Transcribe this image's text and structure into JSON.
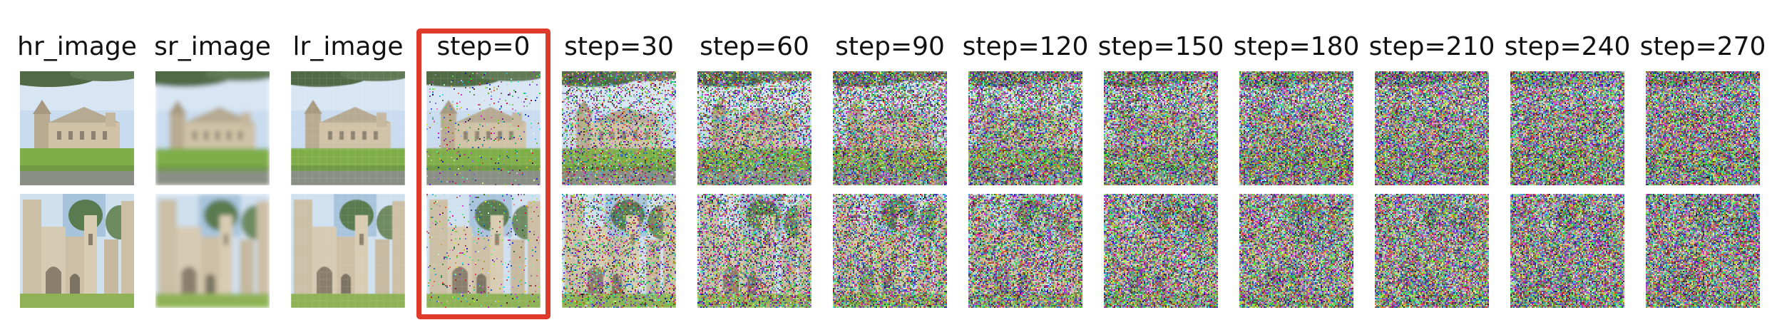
{
  "columns": [
    {
      "label": "hr_image",
      "kind": "hr",
      "noise": 0.0
    },
    {
      "label": "sr_image",
      "kind": "sr",
      "noise": 0.0
    },
    {
      "label": "lr_image",
      "kind": "lr",
      "noise": 0.0
    },
    {
      "label": "step=0",
      "kind": "step",
      "noise": 0.06
    },
    {
      "label": "step=30",
      "kind": "step",
      "noise": 0.38
    },
    {
      "label": "step=60",
      "kind": "step",
      "noise": 0.58
    },
    {
      "label": "step=90",
      "kind": "step",
      "noise": 0.72
    },
    {
      "label": "step=120",
      "kind": "step",
      "noise": 0.82
    },
    {
      "label": "step=150",
      "kind": "step",
      "noise": 0.88
    },
    {
      "label": "step=180",
      "kind": "step",
      "noise": 0.92
    },
    {
      "label": "step=210",
      "kind": "step",
      "noise": 0.95
    },
    {
      "label": "step=240",
      "kind": "step",
      "noise": 0.97
    },
    {
      "label": "step=270",
      "kind": "step",
      "noise": 0.99
    }
  ],
  "rows": [
    {
      "scene": "church"
    },
    {
      "scene": "ruins"
    }
  ],
  "highlight_column": "step=0",
  "colors": {
    "highlight": "#e03a2a",
    "sky": "#c9dcef",
    "grass": "#7fae4a",
    "stone": "#cfc2a7",
    "foliage": "#4f6b45"
  }
}
